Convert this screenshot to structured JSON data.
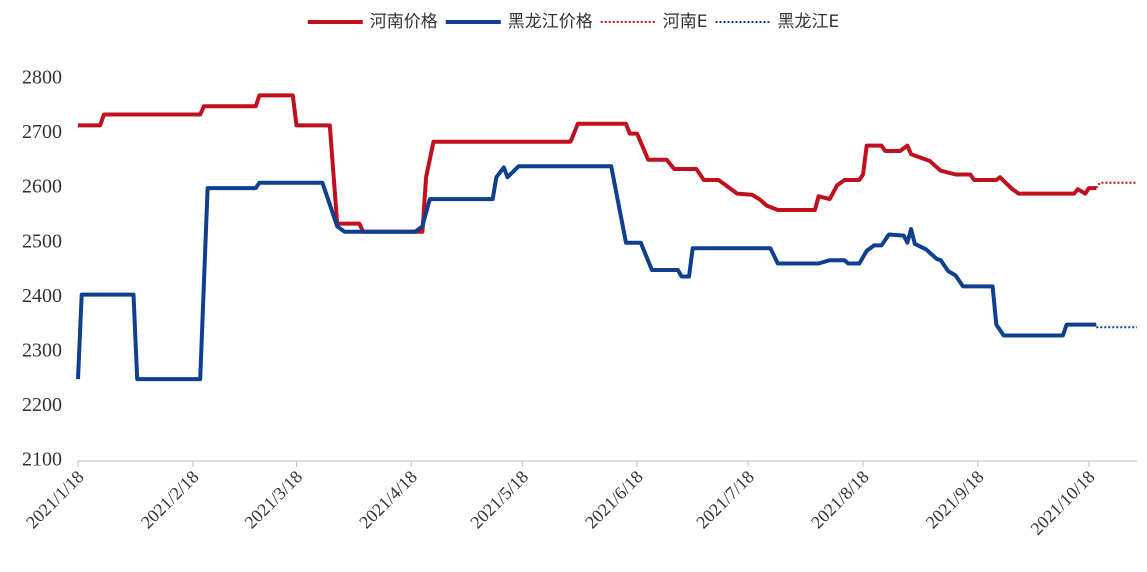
{
  "chart_data": {
    "type": "line",
    "legend": "top",
    "ylim": [
      2100,
      2800
    ],
    "yticks": [
      2100,
      2200,
      2300,
      2400,
      2500,
      2600,
      2700,
      2800
    ],
    "xlim": [
      "2021/1/18",
      "2021/10/31"
    ],
    "xticks": [
      "2021/1/18",
      "2021/2/18",
      "2021/3/18",
      "2021/4/18",
      "2021/5/18",
      "2021/6/18",
      "2021/7/18",
      "2021/8/18",
      "2021/9/18",
      "2021/10/18"
    ],
    "series": [
      {
        "name": "河南价格",
        "color": "#c0101e",
        "style": "solid",
        "x": [
          "2021/1/18",
          "2021/1/24",
          "2021/1/25",
          "2021/2/20",
          "2021/2/21",
          "2021/3/7",
          "2021/3/8",
          "2021/3/17",
          "2021/3/18",
          "2021/3/27",
          "2021/3/29",
          "2021/4/4",
          "2021/4/5",
          "2021/4/21",
          "2021/4/22",
          "2021/4/24",
          "2021/5/31",
          "2021/6/2",
          "2021/6/15",
          "2021/6/16",
          "2021/6/18",
          "2021/6/21",
          "2021/6/26",
          "2021/6/28",
          "2021/7/4",
          "2021/7/6",
          "2021/7/10",
          "2021/7/13",
          "2021/7/15",
          "2021/7/19",
          "2021/7/21",
          "2021/7/23",
          "2021/7/26",
          "2021/8/5",
          "2021/8/6",
          "2021/8/9",
          "2021/8/11",
          "2021/8/13",
          "2021/8/17",
          "2021/8/18",
          "2021/8/19",
          "2021/8/23",
          "2021/8/24",
          "2021/8/28",
          "2021/8/30",
          "2021/8/31",
          "2021/9/5",
          "2021/9/8",
          "2021/9/12",
          "2021/9/16",
          "2021/9/17",
          "2021/9/23",
          "2021/9/24",
          "2021/9/27",
          "2021/9/29",
          "2021/10/14",
          "2021/10/15",
          "2021/10/17",
          "2021/10/18",
          "2021/10/20"
        ],
        "values": [
          2715,
          2715,
          2735,
          2735,
          2750,
          2750,
          2770,
          2770,
          2715,
          2715,
          2535,
          2535,
          2520,
          2520,
          2620,
          2685,
          2685,
          2718,
          2718,
          2700,
          2700,
          2652,
          2652,
          2635,
          2635,
          2615,
          2615,
          2600,
          2590,
          2588,
          2580,
          2568,
          2560,
          2560,
          2585,
          2580,
          2605,
          2615,
          2615,
          2625,
          2678,
          2678,
          2668,
          2668,
          2678,
          2662,
          2650,
          2632,
          2625,
          2625,
          2615,
          2615,
          2620,
          2600,
          2590,
          2590,
          2598,
          2590,
          2600,
          2600
        ]
      },
      {
        "name": "黑龙江价格",
        "color": "#0f3f8f",
        "style": "solid",
        "x": [
          "2021/1/18",
          "2021/1/19",
          "2021/2/2",
          "2021/2/3",
          "2021/2/20",
          "2021/2/22",
          "2021/3/7",
          "2021/3/8",
          "2021/3/25",
          "2021/3/29",
          "2021/3/31",
          "2021/4/19",
          "2021/4/21",
          "2021/4/23",
          "2021/5/10",
          "2021/5/11",
          "2021/5/13",
          "2021/5/14",
          "2021/5/17",
          "2021/6/11",
          "2021/6/15",
          "2021/6/19",
          "2021/6/22",
          "2021/6/29",
          "2021/6/30",
          "2021/7/2",
          "2021/7/3",
          "2021/7/24",
          "2021/7/26",
          "2021/8/6",
          "2021/8/9",
          "2021/8/13",
          "2021/8/14",
          "2021/8/17",
          "2021/8/19",
          "2021/8/21",
          "2021/8/23",
          "2021/8/25",
          "2021/8/29",
          "2021/8/30",
          "2021/8/31",
          "2021/9/1",
          "2021/9/4",
          "2021/9/7",
          "2021/9/8",
          "2021/9/10",
          "2021/9/12",
          "2021/9/14",
          "2021/9/22",
          "2021/9/23",
          "2021/9/25",
          "2021/10/11",
          "2021/10/12",
          "2021/10/20"
        ],
        "values": [
          2250,
          2405,
          2405,
          2250,
          2250,
          2600,
          2600,
          2610,
          2610,
          2530,
          2520,
          2520,
          2530,
          2580,
          2580,
          2620,
          2638,
          2620,
          2640,
          2640,
          2500,
          2500,
          2450,
          2450,
          2438,
          2438,
          2490,
          2490,
          2462,
          2462,
          2468,
          2468,
          2462,
          2462,
          2485,
          2495,
          2495,
          2515,
          2513,
          2500,
          2525,
          2498,
          2488,
          2470,
          2468,
          2448,
          2440,
          2420,
          2420,
          2350,
          2330,
          2330,
          2350,
          2350
        ]
      },
      {
        "name": "河南E",
        "color": "#c0101e",
        "style": "dotted",
        "x": [
          "2021/10/20",
          "2021/10/21",
          "2021/10/31"
        ],
        "values": [
          2600,
          2610,
          2610
        ]
      },
      {
        "name": "黑龙江E",
        "color": "#0f3f8f",
        "style": "dotted",
        "x": [
          "2021/10/20",
          "2021/10/31"
        ],
        "values": [
          2345,
          2345
        ]
      }
    ]
  }
}
